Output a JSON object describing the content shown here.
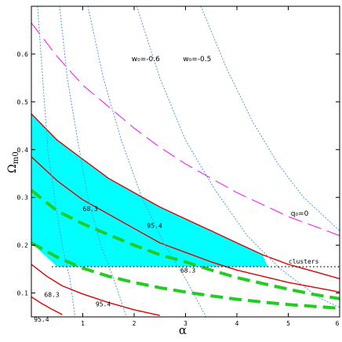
{
  "chart_data": {
    "type": "line",
    "xlabel": "α",
    "ylabel": "Ω",
    "ylabel_sub": "m0",
    "xlim": [
      0,
      6
    ],
    "ylim": [
      0.05,
      0.7
    ],
    "grid": false,
    "x_ticks": [
      {
        "value": 1,
        "label": "1"
      },
      {
        "value": 2,
        "label": "2"
      },
      {
        "value": 3,
        "label": "3"
      },
      {
        "value": 4,
        "label": "4"
      },
      {
        "value": 5,
        "label": "5"
      },
      {
        "value": 6,
        "label": "6"
      }
    ],
    "y_ticks": [
      {
        "value": 0.1,
        "label": "0.1"
      },
      {
        "value": 0.2,
        "label": "0.2"
      },
      {
        "value": 0.3,
        "label": "0.3"
      },
      {
        "value": 0.4,
        "label": "0.4"
      },
      {
        "value": 0.5,
        "label": "0.5"
      },
      {
        "value": 0.6,
        "label": "0.6"
      }
    ],
    "filled_region": {
      "color": "#00ffff",
      "points": [
        [
          0,
          0.475
        ],
        [
          0.5,
          0.42
        ],
        [
          1,
          0.38
        ],
        [
          1.5,
          0.34
        ],
        [
          2,
          0.31
        ],
        [
          2.5,
          0.28
        ],
        [
          3,
          0.255
        ],
        [
          3.5,
          0.23
        ],
        [
          4,
          0.205
        ],
        [
          4.5,
          0.18
        ],
        [
          4.6,
          0.155
        ],
        [
          4,
          0.155
        ],
        [
          3,
          0.155
        ],
        [
          2,
          0.155
        ],
        [
          1,
          0.155
        ],
        [
          0.5,
          0.155
        ],
        [
          0,
          0.205
        ]
      ]
    },
    "clusters_line": {
      "y": 0.155,
      "x": [
        0.4,
        6
      ],
      "label": "clusters",
      "label_at": [
        5.3,
        0.162
      ],
      "color": "#000000"
    },
    "series": [
      {
        "role": "red-contour-upper-95",
        "color": "#e00000",
        "style": "solid",
        "points": [
          [
            0,
            0.475
          ],
          [
            0.5,
            0.42
          ],
          [
            1,
            0.38
          ],
          [
            1.5,
            0.34
          ],
          [
            2,
            0.31
          ],
          [
            2.5,
            0.28
          ],
          [
            3,
            0.255
          ],
          [
            3.5,
            0.23
          ],
          [
            4,
            0.205
          ],
          [
            4.5,
            0.18
          ],
          [
            5,
            0.16
          ],
          [
            5.5,
            0.145
          ],
          [
            6,
            0.13
          ]
        ]
      },
      {
        "role": "red-contour-upper-68",
        "color": "#e00000",
        "style": "solid",
        "points": [
          [
            0,
            0.385
          ],
          [
            0.5,
            0.335
          ],
          [
            1,
            0.295
          ],
          [
            1.5,
            0.265
          ],
          [
            2,
            0.235
          ],
          [
            2.5,
            0.205
          ],
          [
            3,
            0.185
          ],
          [
            3.5,
            0.165
          ],
          [
            4,
            0.148
          ],
          [
            4.5,
            0.135
          ],
          [
            5,
            0.122
          ],
          [
            5.5,
            0.112
          ],
          [
            6,
            0.102
          ]
        ]
      },
      {
        "role": "red-contour-lower-68",
        "color": "#e00000",
        "style": "solid",
        "points": [
          [
            0,
            0.16
          ],
          [
            0.3,
            0.135
          ],
          [
            0.6,
            0.115
          ],
          [
            1,
            0.098
          ],
          [
            1.5,
            0.08
          ],
          [
            2,
            0.065
          ],
          [
            2.5,
            0.053
          ]
        ]
      },
      {
        "role": "red-contour-lower-95",
        "color": "#e00000",
        "style": "solid",
        "points": [
          [
            0,
            0.092
          ],
          [
            0.2,
            0.078
          ],
          [
            0.4,
            0.066
          ],
          [
            0.6,
            0.055
          ]
        ]
      },
      {
        "role": "green-dashed-upper",
        "color": "#22cc22",
        "style": "dashed",
        "points": [
          [
            0,
            0.315
          ],
          [
            0.5,
            0.272
          ],
          [
            1,
            0.245
          ],
          [
            1.5,
            0.222
          ],
          [
            2,
            0.2
          ],
          [
            2.5,
            0.18
          ],
          [
            3,
            0.165
          ],
          [
            3.5,
            0.148
          ],
          [
            4,
            0.132
          ],
          [
            4.5,
            0.12
          ],
          [
            5,
            0.108
          ],
          [
            5.5,
            0.097
          ],
          [
            6,
            0.088
          ]
        ]
      },
      {
        "role": "green-dashed-lower",
        "color": "#22cc22",
        "style": "dashed",
        "points": [
          [
            0,
            0.205
          ],
          [
            0.5,
            0.175
          ],
          [
            1,
            0.152
          ],
          [
            1.5,
            0.135
          ],
          [
            2,
            0.122
          ],
          [
            2.5,
            0.111
          ],
          [
            3,
            0.102
          ],
          [
            3.5,
            0.094
          ],
          [
            4,
            0.087
          ],
          [
            4.5,
            0.081
          ],
          [
            5,
            0.076
          ],
          [
            5.5,
            0.072
          ],
          [
            6,
            0.068
          ]
        ]
      },
      {
        "role": "magenta-q0-line",
        "color": "#ee33ee",
        "style": "longdash",
        "points": [
          [
            0,
            0.665
          ],
          [
            0.5,
            0.595
          ],
          [
            1,
            0.535
          ],
          [
            1.5,
            0.49
          ],
          [
            2,
            0.445
          ],
          [
            2.5,
            0.405
          ],
          [
            3,
            0.37
          ],
          [
            3.5,
            0.34
          ],
          [
            4,
            0.31
          ],
          [
            4.5,
            0.285
          ],
          [
            5,
            0.26
          ],
          [
            5.5,
            0.24
          ],
          [
            6,
            0.22
          ]
        ]
      },
      {
        "role": "blue-dotted-1",
        "color": "#5599dd",
        "style": "dotted",
        "points": [
          [
            0.12,
            0.7
          ],
          [
            0.22,
            0.55
          ],
          [
            0.32,
            0.4
          ],
          [
            0.45,
            0.3
          ],
          [
            0.6,
            0.2
          ],
          [
            0.75,
            0.13
          ],
          [
            0.85,
            0.05
          ]
        ]
      },
      {
        "role": "blue-dotted-2",
        "color": "#5599dd",
        "style": "dotted",
        "points": [
          [
            0.55,
            0.7
          ],
          [
            0.7,
            0.55
          ],
          [
            0.9,
            0.42
          ],
          [
            1.1,
            0.3
          ],
          [
            1.35,
            0.2
          ],
          [
            1.6,
            0.13
          ],
          [
            1.85,
            0.05
          ]
        ]
      },
      {
        "role": "blue-dotted-3",
        "color": "#5599dd",
        "style": "dotted",
        "points": [
          [
            1.1,
            0.7
          ],
          [
            1.4,
            0.55
          ],
          [
            1.75,
            0.42
          ],
          [
            2.15,
            0.3
          ],
          [
            2.6,
            0.2
          ],
          [
            3.0,
            0.13
          ],
          [
            3.4,
            0.05
          ]
        ]
      },
      {
        "role": "blue-dotted-4",
        "color": "#5599dd",
        "style": "dotted",
        "points": [
          [
            2.05,
            0.7
          ],
          [
            2.5,
            0.55
          ],
          [
            3.0,
            0.42
          ],
          [
            3.55,
            0.32
          ],
          [
            4.2,
            0.22
          ],
          [
            4.85,
            0.15
          ],
          [
            5.6,
            0.09
          ],
          [
            6,
            0.07
          ]
        ]
      },
      {
        "role": "blue-dotted-5",
        "color": "#5599dd",
        "style": "dotted",
        "points": [
          [
            3.3,
            0.7
          ],
          [
            3.8,
            0.57
          ],
          [
            4.3,
            0.46
          ],
          [
            4.8,
            0.37
          ],
          [
            5.3,
            0.3
          ],
          [
            5.8,
            0.25
          ],
          [
            6,
            0.23
          ]
        ]
      }
    ],
    "annotations": [
      {
        "kind": "contour",
        "text": "68.3",
        "at": [
          1.0,
          0.272
        ]
      },
      {
        "kind": "contour",
        "text": "95.4",
        "at": [
          2.25,
          0.236
        ]
      },
      {
        "kind": "contour",
        "text": "68.3",
        "at": [
          2.9,
          0.143
        ]
      },
      {
        "kind": "contour",
        "text": "68.3",
        "at": [
          0.25,
          0.092
        ]
      },
      {
        "kind": "contour",
        "text": "95.4",
        "at": [
          1.25,
          0.072
        ]
      },
      {
        "kind": "contour",
        "text": "95.4",
        "at": [
          0.05,
          0.04
        ]
      },
      {
        "kind": "w0",
        "text": "w₀=-0.6",
        "at": [
          1.95,
          0.585
        ]
      },
      {
        "kind": "w0",
        "text": "w₀=-0.5",
        "at": [
          2.95,
          0.585
        ]
      },
      {
        "kind": "q0",
        "text": "q₀=0",
        "at": [
          5.05,
          0.262
        ]
      }
    ]
  }
}
